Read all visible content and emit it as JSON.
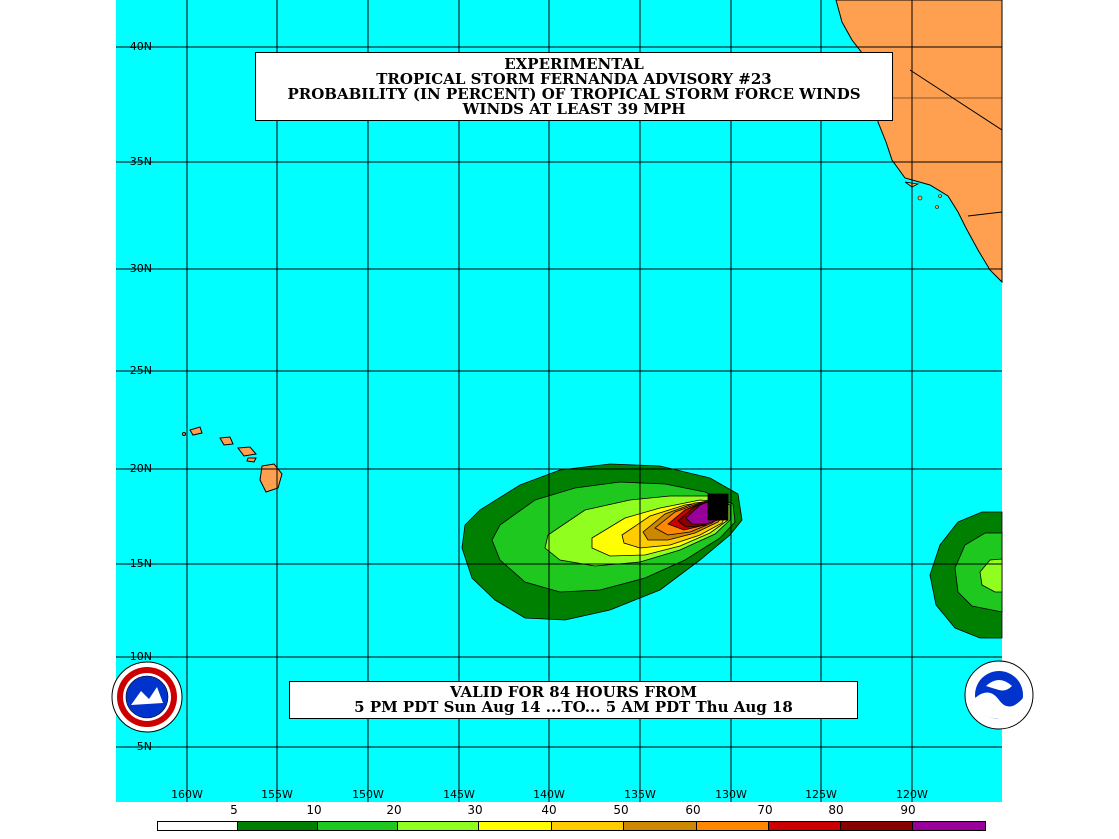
{
  "title": {
    "line1": "EXPERIMENTAL",
    "line2": "TROPICAL STORM FERNANDA ADVISORY #23",
    "line3": "PROBABILITY (IN PERCENT) OF TROPICAL STORM FORCE WINDS",
    "line4": "WINDS AT LEAST 39 MPH"
  },
  "valid": {
    "line1": "VALID FOR 84 HOURS FROM",
    "line2": "5 PM PDT Sun Aug 14 ...TO... 5 AM PDT Thu Aug 18"
  },
  "lat_labels": [
    "40N",
    "35N",
    "30N",
    "25N",
    "20N",
    "15N",
    "10N",
    "5N"
  ],
  "lon_labels": [
    "160W",
    "155W",
    "150W",
    "145W",
    "140W",
    "135W",
    "130W",
    "125W",
    "120W"
  ],
  "scale": {
    "labels": [
      "5",
      "10",
      "20",
      "30",
      "40",
      "50",
      "60",
      "70",
      "80",
      "90"
    ],
    "colors": [
      "#ffffff",
      "#008000",
      "#1ec81e",
      "#90ff20",
      "#ffff00",
      "#ffcc00",
      "#cc8800",
      "#ff8800",
      "#cc0000",
      "#880000",
      "#990099"
    ]
  },
  "colors": {
    "ocean": "#00ffff",
    "land": "#ffa050"
  },
  "logos": {
    "left": "nws-logo",
    "right": "noaa-logo"
  }
}
